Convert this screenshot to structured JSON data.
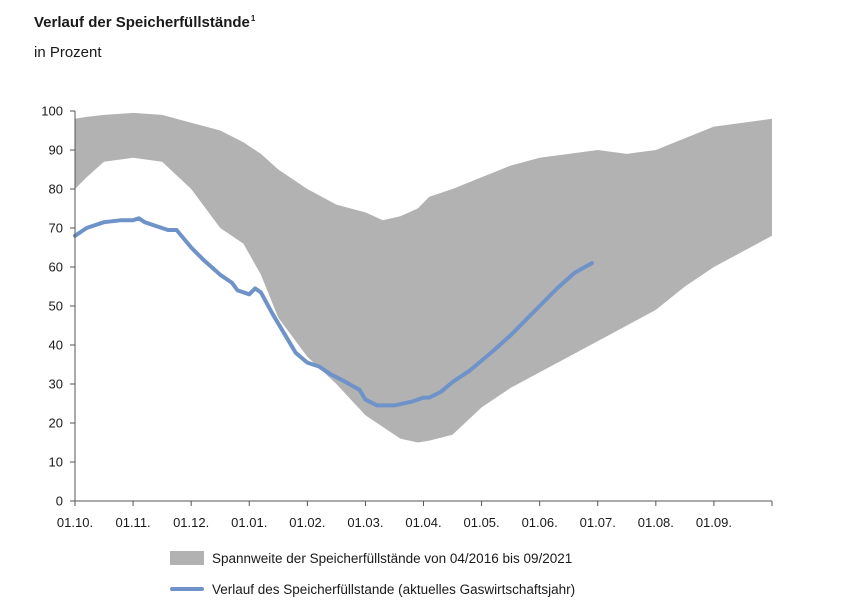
{
  "header": {
    "title": "Verlauf der Speicherfüllstände",
    "title_footnote": "1",
    "subtitle": "in Prozent"
  },
  "chart_data": {
    "type": "area",
    "y_ticks": [
      "0",
      "10",
      "20",
      "30",
      "40",
      "50",
      "60",
      "70",
      "80",
      "90",
      "100"
    ],
    "ylim": [
      0,
      100
    ],
    "x_ticks": [
      "01.10.",
      "01.11.",
      "01.12.",
      "01.01.",
      "01.02.",
      "01.03.",
      "01.04.",
      "01.05.",
      "01.06.",
      "01.07.",
      "01.08.",
      "01.09."
    ],
    "x_unit": "month index from 01.10. (0) to end of September (12)",
    "grid": false,
    "legend_placement": "bottom",
    "colors": {
      "band": "#b2b2b2",
      "line": "#6f93c9"
    },
    "series": [
      {
        "name": "Spannweite der Speicherfüllstände von 04/2016 bis 09/2021",
        "kind": "band",
        "x": [
          0,
          0.2,
          0.5,
          1.0,
          1.5,
          2.0,
          2.5,
          2.9,
          3.2,
          3.5,
          4.0,
          4.5,
          5.0,
          5.3,
          5.6,
          5.9,
          6.1,
          6.5,
          7.0,
          7.5,
          8.0,
          8.5,
          9.0,
          9.5,
          10.0,
          10.5,
          11.0,
          11.5,
          12.0
        ],
        "upper": [
          98,
          98.5,
          99,
          99.5,
          99,
          97,
          95,
          92,
          89,
          85,
          80,
          76,
          74,
          72,
          73,
          75,
          78,
          80,
          83,
          86,
          88,
          89,
          90,
          89,
          90,
          93,
          96,
          97,
          98
        ],
        "lower": [
          80,
          83,
          87,
          88,
          87,
          80,
          70,
          66,
          58,
          47,
          37,
          30,
          22,
          19,
          16,
          15,
          15.5,
          17,
          24,
          29,
          33,
          37,
          41,
          45,
          49,
          55,
          60,
          64,
          68
        ]
      },
      {
        "name": "Verlauf des Speicherfüllstande (aktuelles Gaswirtschaftsjahr)",
        "kind": "line",
        "x": [
          0,
          0.2,
          0.5,
          0.8,
          1.0,
          1.1,
          1.2,
          1.4,
          1.6,
          1.75,
          2.0,
          2.2,
          2.5,
          2.7,
          2.8,
          3.0,
          3.1,
          3.2,
          3.4,
          3.6,
          3.8,
          4.0,
          4.2,
          4.4,
          4.6,
          4.9,
          5.0,
          5.2,
          5.5,
          5.8,
          6.0,
          6.1,
          6.3,
          6.5,
          6.8,
          7.0,
          7.2,
          7.5,
          7.8,
          8.0,
          8.3,
          8.6,
          8.9
        ],
        "y": [
          68,
          70,
          71.5,
          72,
          72,
          72.5,
          71.5,
          70.5,
          69.5,
          69.5,
          65,
          62,
          58,
          56,
          54,
          53,
          54.5,
          53.5,
          48,
          43,
          38,
          35.5,
          34.5,
          32.5,
          31,
          28.5,
          26,
          24.5,
          24.5,
          25.5,
          26.5,
          26.5,
          28,
          30.5,
          33.5,
          36,
          38.5,
          42.5,
          47,
          50,
          54.5,
          58.5,
          61
        ]
      }
    ]
  },
  "legend": {
    "band_label": "Spannweite der Speicherfüllstände von 04/2016 bis 09/2021",
    "line_label": "Verlauf des Speicherfüllstande (aktuelles Gaswirtschaftsjahr)"
  }
}
